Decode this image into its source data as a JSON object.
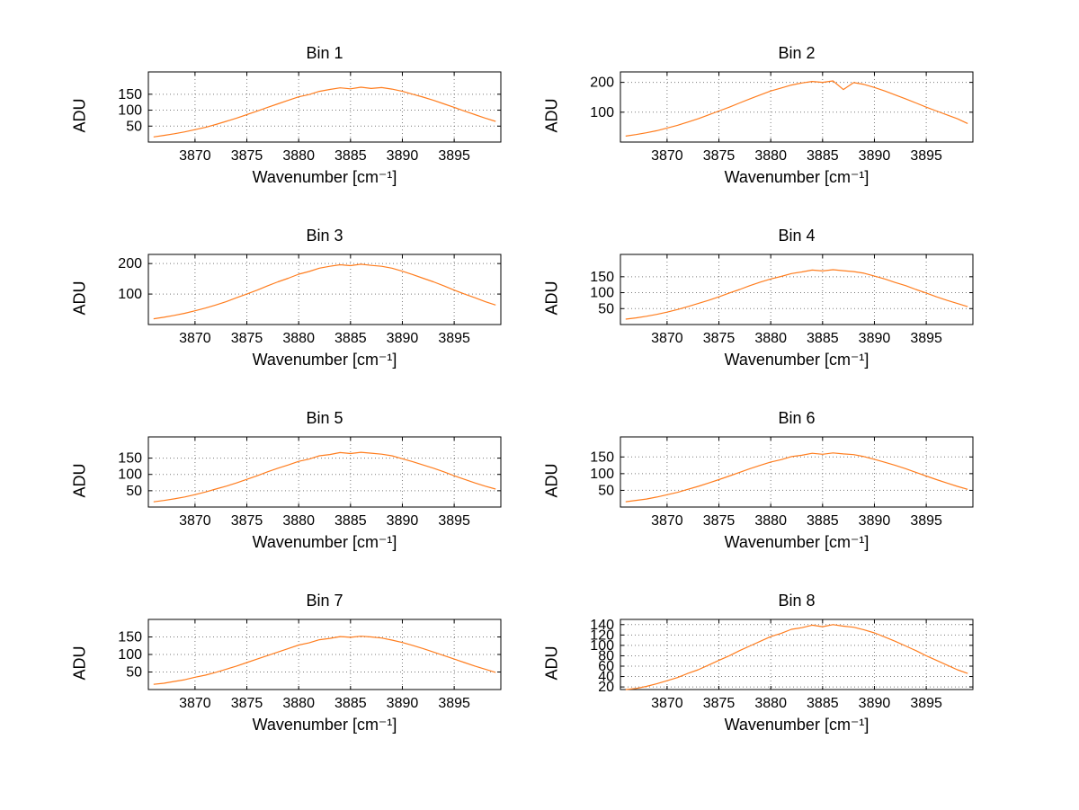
{
  "page": {
    "background": "#ffffff"
  },
  "chart_data": [
    {
      "type": "line",
      "title": "Bin 1",
      "xlabel": "Wavenumber [cm⁻¹]",
      "ylabel": "ADU",
      "line_color": "#ff7d1e",
      "grid": true,
      "legend": "none",
      "xlim": [
        3865.5,
        3899.5
      ],
      "ylim": [
        0,
        220
      ],
      "xticks": [
        3870,
        3875,
        3880,
        3885,
        3890,
        3895
      ],
      "yticks": [
        50,
        100,
        150
      ],
      "x_start": 3866,
      "x_step": 1,
      "values": [
        16,
        21,
        26,
        32,
        39,
        46,
        55,
        65,
        75,
        86,
        97,
        109,
        120,
        131,
        142,
        149,
        159,
        165,
        170,
        167,
        172,
        168,
        171,
        166,
        159,
        150,
        141,
        131,
        120,
        109,
        97,
        86,
        75,
        65
      ]
    },
    {
      "type": "line",
      "title": "Bin 2",
      "xlabel": "Wavenumber [cm⁻¹]",
      "ylabel": "ADU",
      "line_color": "#ff7d1e",
      "grid": true,
      "legend": "none",
      "xlim": [
        3865.5,
        3899.5
      ],
      "ylim": [
        0,
        235
      ],
      "xticks": [
        3870,
        3875,
        3880,
        3885,
        3890,
        3895
      ],
      "yticks": [
        100,
        200
      ],
      "x_start": 3866,
      "x_step": 1,
      "values": [
        20,
        25,
        31,
        38,
        47,
        56,
        67,
        78,
        91,
        104,
        117,
        131,
        145,
        158,
        171,
        181,
        191,
        198,
        203,
        200,
        205,
        176,
        199,
        193,
        183,
        171,
        158,
        145,
        131,
        117,
        104,
        91,
        78,
        62
      ]
    },
    {
      "type": "line",
      "title": "Bin 3",
      "xlabel": "Wavenumber [cm⁻¹]",
      "ylabel": "ADU",
      "line_color": "#ff7d1e",
      "grid": true,
      "legend": "none",
      "xlim": [
        3865.5,
        3899.5
      ],
      "ylim": [
        0,
        230
      ],
      "xticks": [
        3870,
        3875,
        3880,
        3885,
        3890,
        3895
      ],
      "yticks": [
        100,
        200
      ],
      "x_start": 3866,
      "x_step": 1,
      "values": [
        19,
        24,
        30,
        37,
        45,
        54,
        64,
        75,
        88,
        100,
        113,
        127,
        140,
        152,
        165,
        174,
        185,
        191,
        196,
        193,
        198,
        194,
        191,
        185,
        175,
        164,
        152,
        140,
        127,
        113,
        100,
        88,
        75,
        64
      ]
    },
    {
      "type": "line",
      "title": "Bin 4",
      "xlabel": "Wavenumber [cm⁻¹]",
      "ylabel": "ADU",
      "line_color": "#ff7d1e",
      "grid": true,
      "legend": "none",
      "xlim": [
        3865.5,
        3899.5
      ],
      "ylim": [
        0,
        220
      ],
      "xticks": [
        3870,
        3875,
        3880,
        3885,
        3890,
        3895
      ],
      "yticks": [
        50,
        100,
        150
      ],
      "x_start": 3866,
      "x_step": 1,
      "values": [
        17,
        21,
        26,
        32,
        39,
        47,
        56,
        66,
        76,
        87,
        99,
        110,
        122,
        133,
        143,
        151,
        160,
        165,
        171,
        168,
        172,
        169,
        166,
        161,
        152,
        143,
        132,
        122,
        110,
        99,
        87,
        76,
        66,
        56
      ]
    },
    {
      "type": "line",
      "title": "Bin 5",
      "xlabel": "Wavenumber [cm⁻¹]",
      "ylabel": "ADU",
      "line_color": "#ff7d1e",
      "grid": true,
      "legend": "none",
      "xlim": [
        3865.5,
        3899.5
      ],
      "ylim": [
        0,
        215
      ],
      "xticks": [
        3870,
        3875,
        3880,
        3885,
        3890,
        3895
      ],
      "yticks": [
        50,
        100,
        150
      ],
      "x_start": 3866,
      "x_step": 1,
      "values": [
        16,
        20,
        25,
        31,
        38,
        46,
        55,
        64,
        74,
        85,
        96,
        108,
        119,
        129,
        140,
        147,
        157,
        161,
        167,
        164,
        168,
        165,
        162,
        157,
        148,
        139,
        129,
        119,
        108,
        96,
        85,
        74,
        64,
        55
      ]
    },
    {
      "type": "line",
      "title": "Bin 6",
      "xlabel": "Wavenumber [cm⁻¹]",
      "ylabel": "ADU",
      "line_color": "#ff7d1e",
      "grid": true,
      "legend": "none",
      "xlim": [
        3865.5,
        3899.5
      ],
      "ylim": [
        0,
        210
      ],
      "xticks": [
        3870,
        3875,
        3880,
        3885,
        3890,
        3895
      ],
      "yticks": [
        50,
        100,
        150
      ],
      "x_start": 3866,
      "x_step": 1,
      "values": [
        16,
        20,
        24,
        30,
        37,
        44,
        53,
        62,
        72,
        82,
        93,
        104,
        115,
        125,
        135,
        142,
        151,
        155,
        161,
        158,
        162,
        159,
        157,
        151,
        143,
        134,
        125,
        115,
        104,
        93,
        82,
        72,
        62,
        53
      ]
    },
    {
      "type": "line",
      "title": "Bin 7",
      "xlabel": "Wavenumber [cm⁻¹]",
      "ylabel": "ADU",
      "line_color": "#ff7d1e",
      "grid": true,
      "legend": "none",
      "xlim": [
        3865.5,
        3899.5
      ],
      "ylim": [
        0,
        200
      ],
      "xticks": [
        3870,
        3875,
        3880,
        3885,
        3890,
        3895
      ],
      "yticks": [
        50,
        100,
        150
      ],
      "x_start": 3866,
      "x_step": 1,
      "values": [
        15,
        18,
        23,
        28,
        35,
        41,
        49,
        58,
        67,
        77,
        87,
        97,
        107,
        117,
        127,
        133,
        142,
        146,
        151,
        149,
        152,
        150,
        147,
        141,
        134,
        126,
        117,
        107,
        97,
        87,
        77,
        67,
        58,
        49
      ]
    },
    {
      "type": "line",
      "title": "Bin 8",
      "xlabel": "Wavenumber [cm⁻¹]",
      "ylabel": "ADU",
      "line_color": "#ff7d1e",
      "grid": true,
      "legend": "none",
      "xlim": [
        3865.5,
        3899.5
      ],
      "ylim": [
        15,
        150
      ],
      "xticks": [
        3870,
        3875,
        3880,
        3885,
        3890,
        3895
      ],
      "yticks": [
        20,
        40,
        60,
        80,
        100,
        120,
        140
      ],
      "x_start": 3866,
      "x_step": 1,
      "values": [
        15,
        17,
        21,
        26,
        32,
        38,
        46,
        53,
        62,
        71,
        80,
        90,
        99,
        108,
        117,
        123,
        131,
        134,
        139,
        136,
        140,
        137,
        135,
        130,
        124,
        116,
        108,
        99,
        90,
        80,
        71,
        62,
        53,
        46
      ]
    }
  ]
}
